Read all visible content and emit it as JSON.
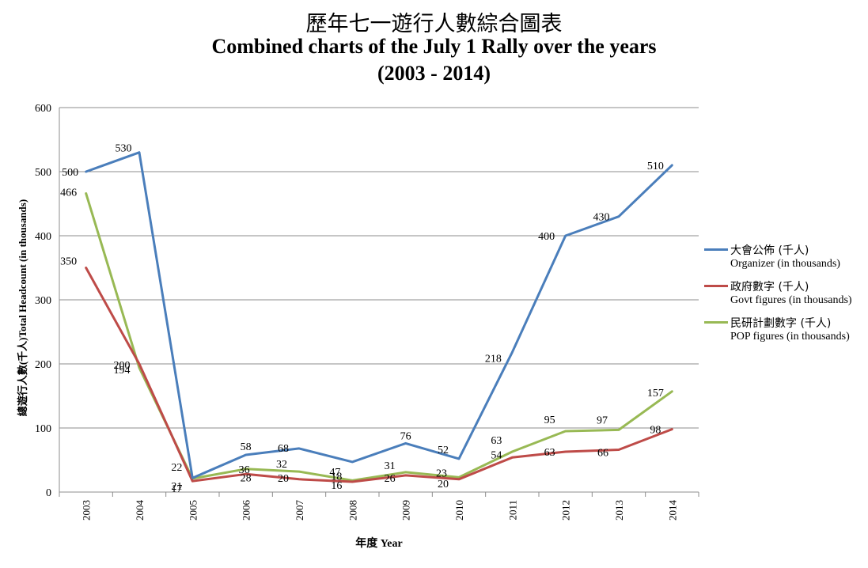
{
  "title_zh": "歷年七一遊行人數綜合圖表",
  "title_en": "Combined charts of the July 1 Rally over the years",
  "title_range": "(2003 - 2014)",
  "chart_data": {
    "type": "line",
    "categories": [
      "2003",
      "2004",
      "2005",
      "2006",
      "2007",
      "2008",
      "2009",
      "2010",
      "2011",
      "2012",
      "2013",
      "2014"
    ],
    "xlabel": "年度 Year",
    "ylabel": "總遊行人數(千人)Total Headcount (in thousands)",
    "ylim": [
      0,
      600
    ],
    "yticks": [
      0,
      100,
      200,
      300,
      400,
      500,
      600
    ],
    "grid": true,
    "legend_position": "right",
    "series": [
      {
        "name_zh": "大會公佈 (千人)",
        "name_en": "Organizer (in thousands)",
        "color": "#4a7ebb",
        "values": [
          500,
          530,
          22,
          58,
          68,
          47,
          76,
          52,
          218,
          400,
          430,
          510
        ],
        "labels": [
          "500",
          "530",
          "22",
          "58",
          "68",
          "47",
          "76",
          "52",
          "218",
          "400",
          "430",
          "510"
        ]
      },
      {
        "name_zh": "政府數字 (千人)",
        "name_en": "Govt figures (in thousands)",
        "color": "#be4b48",
        "values": [
          350,
          200,
          17,
          28,
          20,
          16,
          26,
          20,
          54,
          63,
          66,
          98
        ],
        "labels": [
          "350",
          "200",
          "17",
          "28",
          "20",
          "16",
          "26",
          "20",
          "54",
          "63",
          "66",
          "98"
        ]
      },
      {
        "name_zh": "民研計劃數字 (千人)",
        "name_en": "POP figures (in thousands)",
        "color": "#98b954",
        "values": [
          466,
          194,
          21,
          36,
          32,
          18,
          31,
          23,
          63,
          95,
          97,
          157
        ],
        "labels": [
          "466",
          "194",
          "21",
          "36",
          "32",
          "18",
          "31",
          "23",
          "63",
          "95",
          "97",
          "157"
        ]
      }
    ]
  }
}
